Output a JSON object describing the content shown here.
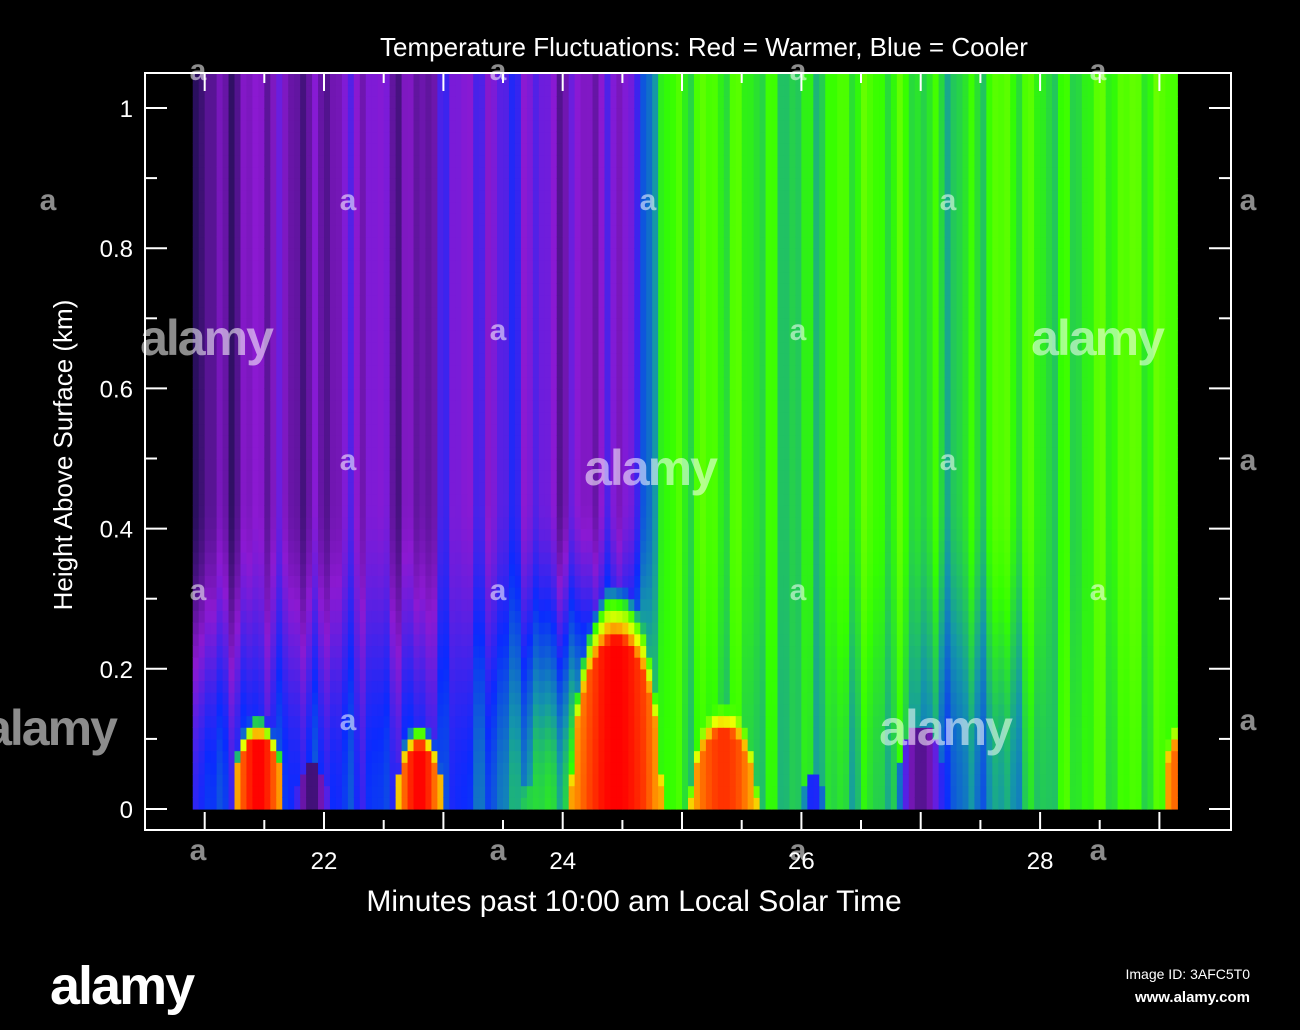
{
  "chart_data": {
    "type": "heatmap",
    "title": "Temperature Fluctuations: Red = Warmer, Blue = Cooler",
    "xlabel": "Minutes past 10:00 am Local Solar Time",
    "ylabel": "Height Above Surface (km)",
    "xlim": [
      20.5,
      29.6
    ],
    "ylim": [
      -0.03,
      1.05
    ],
    "data_x_range": [
      20.9,
      29.15
    ],
    "data_y_range": [
      0,
      1.05
    ],
    "x_ticks": [
      "22",
      "24",
      "26",
      "28"
    ],
    "x_tick_values": [
      22,
      24,
      26,
      28
    ],
    "y_ticks": [
      "0",
      "0.2",
      "0.4",
      "0.6",
      "0.8",
      "1"
    ],
    "y_tick_values": [
      0,
      0.2,
      0.4,
      0.6,
      0.8,
      1
    ],
    "colors": {
      "warm": "#ff0000",
      "neutral": "#33ff00",
      "cool": "#0a2bff",
      "coolest": "#2a0f5e",
      "frame": "#ffffff",
      "background": "#000000"
    },
    "notes": "Cooler (purple/blue) air dominates aloft before ~24.7 min; warmer (green) air aloft afterwards; warm red plumes rise near the surface at ~21.4, 22.8, 24.4, 25.3 and 29.1 min."
  },
  "watermark": {
    "small_mark": "a",
    "brand": "alamy",
    "image_id": "Image ID: 3AFC5T0",
    "url": "www.alamy.com"
  }
}
